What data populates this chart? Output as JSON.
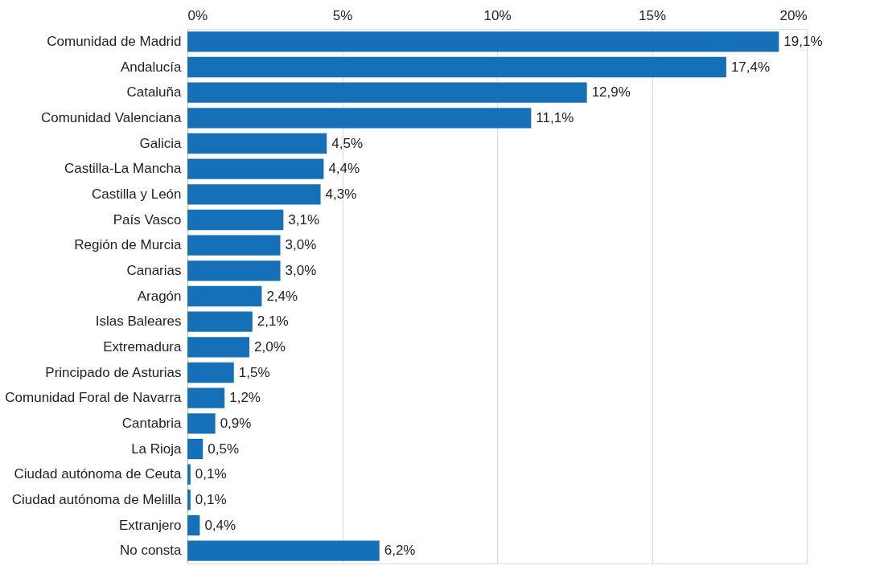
{
  "chart_data": {
    "type": "bar",
    "orientation": "horizontal",
    "categories": [
      "Comunidad de Madrid",
      "Andalucía",
      "Cataluña",
      "Comunidad Valenciana",
      "Galicia",
      "Castilla-La Mancha",
      "Castilla y León",
      "País Vasco",
      "Región de Murcia",
      "Canarias",
      "Aragón",
      "Islas Baleares",
      "Extremadura",
      "Principado de Asturias",
      "Comunidad Foral de Navarra",
      "Cantabria",
      "La Rioja",
      "Ciudad autónoma de Ceuta",
      "Ciudad autónoma de Melilla",
      "Extranjero",
      "No consta"
    ],
    "values": [
      19.1,
      17.4,
      12.9,
      11.1,
      4.5,
      4.4,
      4.3,
      3.1,
      3.0,
      3.0,
      2.4,
      2.1,
      2.0,
      1.5,
      1.2,
      0.9,
      0.5,
      0.1,
      0.1,
      0.4,
      6.2
    ],
    "value_labels": [
      "19,1%",
      "17,4%",
      "12,9%",
      "11,1%",
      "4,5%",
      "4,4%",
      "4,3%",
      "3,1%",
      "3,0%",
      "3,0%",
      "2,4%",
      "2,1%",
      "2,0%",
      "1,5%",
      "1,2%",
      "0,9%",
      "0,5%",
      "0,1%",
      "0,1%",
      "0,4%",
      "6,2%"
    ],
    "color": "#1570b8",
    "xlim": [
      0,
      20
    ],
    "xticks": [
      {
        "value": 0,
        "label": "0%"
      },
      {
        "value": 5,
        "label": "5%"
      },
      {
        "value": 10,
        "label": "10%"
      },
      {
        "value": 15,
        "label": "15%"
      },
      {
        "value": 20,
        "label": "20%"
      }
    ],
    "grid": "x"
  }
}
